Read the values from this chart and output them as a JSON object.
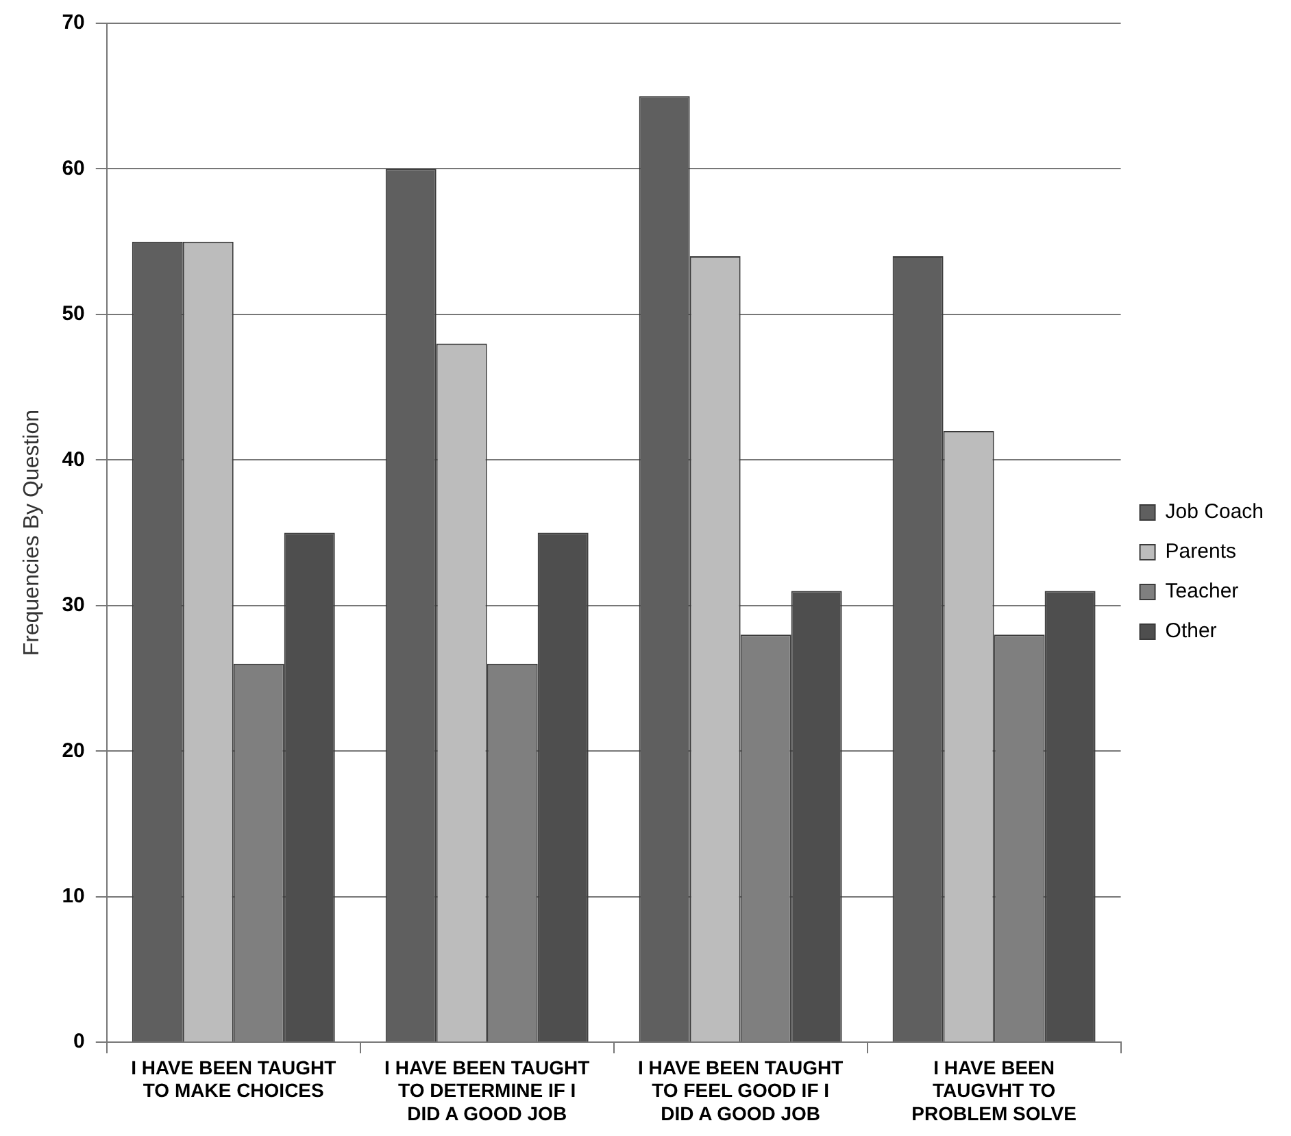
{
  "chart_data": {
    "type": "bar",
    "categories": [
      "I HAVE BEEN TAUGHT\nTO MAKE CHOICES",
      "I HAVE BEEN TAUGHT\nTO DETERMINE IF I\nDID A GOOD JOB",
      "I HAVE BEEN TAUGHT\nTO FEEL GOOD IF I\nDID A GOOD JOB",
      "I HAVE BEEN\nTAUGVHT TO\nPROBLEM SOLVE"
    ],
    "series": [
      {
        "name": "Job Coach",
        "color": "#5f5f5f",
        "values": [
          55,
          60,
          65,
          54
        ]
      },
      {
        "name": "Parents",
        "color": "#bcbcbc",
        "values": [
          55,
          48,
          54,
          42
        ]
      },
      {
        "name": "Teacher",
        "color": "#7f7f7f",
        "values": [
          26,
          26,
          28,
          28
        ]
      },
      {
        "name": "Other",
        "color": "#4e4e4e",
        "values": [
          35,
          35,
          31,
          31
        ]
      }
    ],
    "ylabel": "Frequencies By Question",
    "ylim": [
      0,
      70
    ],
    "yticks": [
      0,
      10,
      20,
      30,
      40,
      50,
      60,
      70
    ],
    "grid": "y",
    "legend": "right"
  }
}
